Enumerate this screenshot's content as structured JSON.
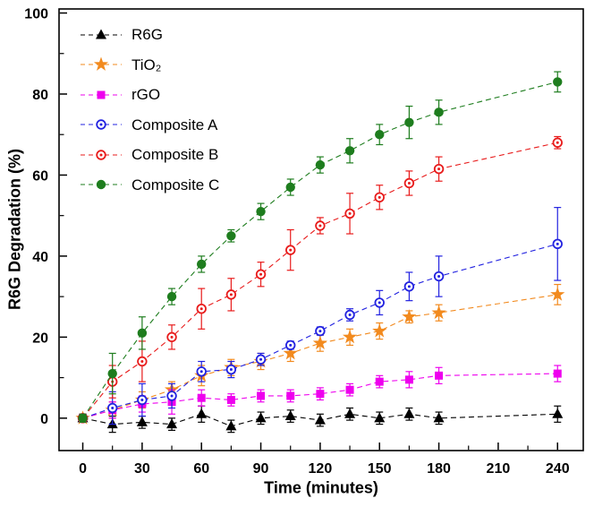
{
  "chart_data": {
    "type": "scatter",
    "title": "",
    "xlabel": "Time (minutes)",
    "ylabel": "R6G Degradation (%)",
    "xlim": [
      -12,
      253
    ],
    "ylim": [
      -8,
      101
    ],
    "x_ticks": [
      0,
      30,
      60,
      90,
      120,
      150,
      180,
      210,
      240
    ],
    "x_minor_step": 15,
    "y_ticks": [
      0,
      20,
      40,
      60,
      80,
      100
    ],
    "y_minor_step": 10,
    "grid": false,
    "legend_position": "top-left",
    "x": [
      0,
      15,
      30,
      45,
      60,
      75,
      90,
      105,
      120,
      135,
      150,
      165,
      180,
      240
    ],
    "series": [
      {
        "name": "R6G",
        "color": "#000000",
        "marker": "triangle",
        "line_style": "dashed",
        "values": [
          0,
          -1.5,
          -1,
          -1.5,
          1,
          -2,
          0,
          0.5,
          -0.5,
          1,
          0,
          1,
          0,
          1
        ],
        "errors": [
          1,
          2,
          1.5,
          1.5,
          2,
          1.5,
          1.5,
          1.5,
          1.5,
          1.5,
          1.5,
          1.5,
          1.5,
          2
        ]
      },
      {
        "name": "TiO₂",
        "color": "#f28a1e",
        "marker": "star",
        "line_style": "dashed",
        "values": [
          0,
          2,
          4.5,
          7,
          10.5,
          12.5,
          14,
          16,
          18.5,
          20,
          21.5,
          25,
          26,
          30.5
        ],
        "errors": [
          1,
          2,
          2,
          2,
          2.5,
          2,
          2,
          2,
          2,
          2,
          2,
          1.5,
          2,
          2.5
        ]
      },
      {
        "name": "rGO",
        "color": "#ee00ee",
        "marker": "square",
        "line_style": "dashed",
        "values": [
          0,
          2,
          3.5,
          4,
          5,
          4.5,
          5.5,
          5.5,
          6,
          7,
          9,
          9.5,
          10.5,
          11
        ],
        "errors": [
          1,
          2,
          2,
          3,
          2,
          1.5,
          1.5,
          1.5,
          1.5,
          1.5,
          1.5,
          2,
          2,
          2
        ]
      },
      {
        "name": "Composite A",
        "color": "#2222e0",
        "marker": "circle-dot",
        "line_style": "dashed",
        "values": [
          0,
          2.5,
          4.5,
          5.5,
          11.5,
          12,
          14.5,
          18,
          21.5,
          25.5,
          28.5,
          32.5,
          35,
          43
        ],
        "errors": [
          1,
          4,
          4,
          3,
          2.5,
          2,
          1.5,
          1,
          1,
          1.5,
          3,
          3.5,
          5,
          9
        ]
      },
      {
        "name": "Composite B",
        "color": "#e81b1b",
        "marker": "circle-dot",
        "line_style": "dashed",
        "values": [
          0,
          9,
          14,
          20,
          27,
          30.5,
          35.5,
          41.5,
          47.5,
          50.5,
          54.5,
          58,
          61.5,
          68
        ],
        "errors": [
          1,
          4,
          5,
          3,
          5,
          4,
          3,
          5,
          2,
          5,
          3,
          3,
          3,
          1.5
        ]
      },
      {
        "name": "Composite C",
        "color": "#1e7d1e",
        "marker": "circle",
        "line_style": "dashed",
        "values": [
          0,
          11,
          21,
          30,
          38,
          45,
          51,
          57,
          62.5,
          66,
          70,
          73,
          75.5,
          83
        ],
        "errors": [
          1,
          5,
          4,
          2,
          2,
          1.5,
          2,
          2,
          2,
          3,
          2.5,
          4,
          3,
          2.5
        ]
      }
    ]
  }
}
